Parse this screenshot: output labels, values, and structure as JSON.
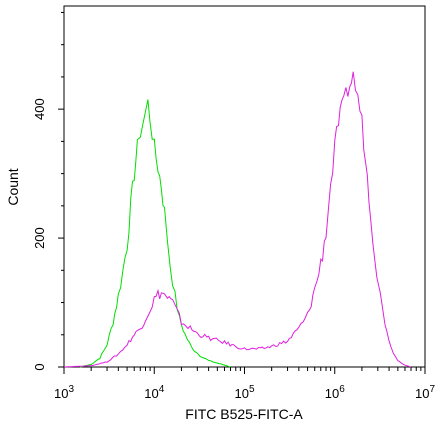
{
  "chart_data": {
    "type": "histogram",
    "xlabel": "FITC B525-FITC-A",
    "ylabel": "Count",
    "x_scale": "log",
    "xlim": [
      1000,
      10000000
    ],
    "ylim": [
      0,
      560
    ],
    "x_ticks": [
      {
        "value": 1000,
        "base": "10",
        "exp": "3"
      },
      {
        "value": 10000,
        "base": "10",
        "exp": "4"
      },
      {
        "value": 100000,
        "base": "10",
        "exp": "5"
      },
      {
        "value": 1000000,
        "base": "10",
        "exp": "6"
      },
      {
        "value": 10000000,
        "base": "10",
        "exp": "7"
      }
    ],
    "y_ticks": [
      {
        "value": 0,
        "label": "0"
      },
      {
        "value": 200,
        "label": "200"
      },
      {
        "value": 400,
        "label": "400"
      }
    ],
    "series": [
      {
        "color": "#00e000",
        "points": [
          [
            1500,
            0
          ],
          [
            2000,
            4
          ],
          [
            2500,
            14
          ],
          [
            3000,
            35
          ],
          [
            3500,
            70
          ],
          [
            4000,
            110
          ],
          [
            4500,
            150
          ],
          [
            5000,
            190
          ],
          [
            5500,
            250
          ],
          [
            6000,
            300
          ],
          [
            6500,
            340
          ],
          [
            7000,
            365
          ],
          [
            7500,
            380
          ],
          [
            8000,
            395
          ],
          [
            8500,
            410
          ],
          [
            9000,
            385
          ],
          [
            10000,
            340
          ],
          [
            11000,
            310
          ],
          [
            12000,
            280
          ],
          [
            13000,
            240
          ],
          [
            14000,
            200
          ],
          [
            15000,
            160
          ],
          [
            17000,
            110
          ],
          [
            19000,
            75
          ],
          [
            22000,
            50
          ],
          [
            26000,
            30
          ],
          [
            32000,
            18
          ],
          [
            40000,
            10
          ],
          [
            50000,
            6
          ],
          [
            60000,
            3
          ],
          [
            70000,
            0
          ]
        ]
      },
      {
        "color": "#e020e0",
        "points": [
          [
            1000,
            0
          ],
          [
            2000,
            2
          ],
          [
            3000,
            8
          ],
          [
            4000,
            20
          ],
          [
            5000,
            35
          ],
          [
            6000,
            50
          ],
          [
            7000,
            60
          ],
          [
            8000,
            75
          ],
          [
            9000,
            90
          ],
          [
            10000,
            105
          ],
          [
            11000,
            112
          ],
          [
            12000,
            115
          ],
          [
            13000,
            112
          ],
          [
            14000,
            108
          ],
          [
            16000,
            100
          ],
          [
            18000,
            85
          ],
          [
            20000,
            70
          ],
          [
            25000,
            60
          ],
          [
            30000,
            52
          ],
          [
            40000,
            45
          ],
          [
            60000,
            38
          ],
          [
            80000,
            32
          ],
          [
            100000,
            28
          ],
          [
            150000,
            28
          ],
          [
            200000,
            32
          ],
          [
            300000,
            40
          ],
          [
            400000,
            60
          ],
          [
            500000,
            80
          ],
          [
            600000,
            120
          ],
          [
            700000,
            160
          ],
          [
            800000,
            210
          ],
          [
            900000,
            280
          ],
          [
            1000000,
            340
          ],
          [
            1100000,
            380
          ],
          [
            1200000,
            400
          ],
          [
            1400000,
            430
          ],
          [
            1600000,
            450
          ],
          [
            1800000,
            420
          ],
          [
            2000000,
            380
          ],
          [
            2200000,
            320
          ],
          [
            2500000,
            240
          ],
          [
            2800000,
            170
          ],
          [
            3200000,
            110
          ],
          [
            3600000,
            70
          ],
          [
            4200000,
            30
          ],
          [
            5000000,
            10
          ],
          [
            6000000,
            3
          ],
          [
            7000000,
            0
          ]
        ]
      }
    ]
  }
}
